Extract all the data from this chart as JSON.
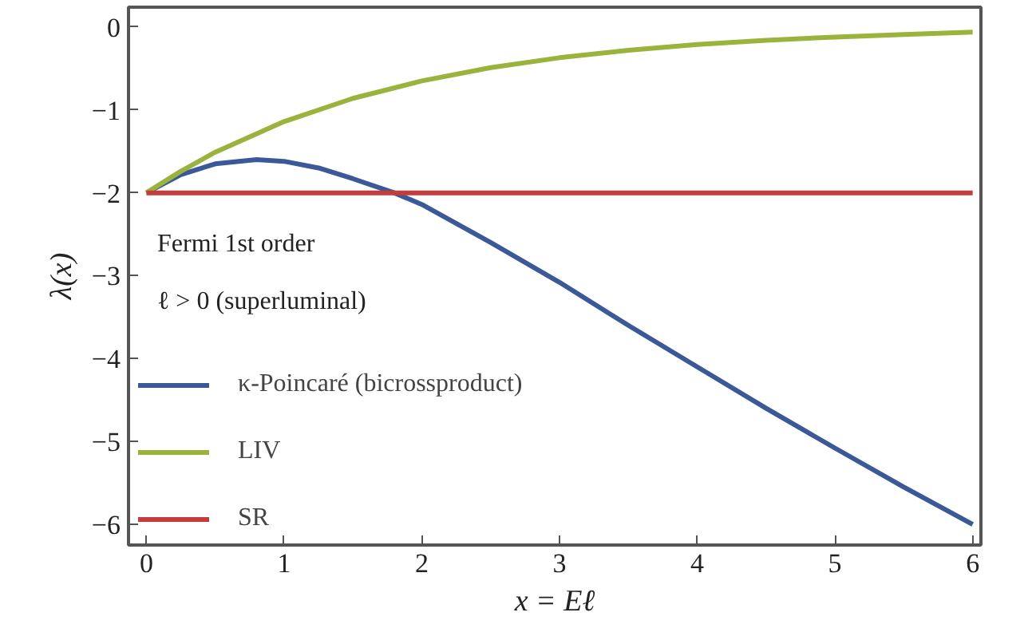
{
  "chart_data": {
    "type": "line",
    "xlabel": "x = Eℓ",
    "ylabel": "λ(x)",
    "annotations": [
      "Fermi 1st order",
      "ℓ > 0 (superluminal)"
    ],
    "x": [
      0,
      0.25,
      0.5,
      0.8,
      1.0,
      1.25,
      1.5,
      1.8,
      2.0,
      2.5,
      3,
      3.5,
      4,
      4.5,
      5,
      5.5,
      6
    ],
    "series": [
      {
        "name": "κ-Poincaré (bicrossproduct)",
        "color": "#3b5998",
        "values": [
          -2,
          -1.78,
          -1.65,
          -1.6,
          -1.62,
          -1.7,
          -1.83,
          -2.0,
          -2.14,
          -2.6,
          -3.08,
          -3.6,
          -4.1,
          -4.6,
          -5.08,
          -5.55,
          -6.0
        ]
      },
      {
        "name": "LIV",
        "color": "#9ab33c",
        "x": [
          0,
          0.25,
          0.5,
          1,
          1.5,
          2,
          2.5,
          3,
          3.5,
          4,
          4.5,
          5,
          5.5,
          6
        ],
        "values": [
          -2,
          -1.74,
          -1.51,
          -1.14,
          -0.86,
          -0.65,
          -0.49,
          -0.37,
          -0.28,
          -0.21,
          -0.16,
          -0.12,
          -0.09,
          -0.06
        ]
      },
      {
        "name": "SR",
        "color": "#c43c3c",
        "x": [
          0,
          6
        ],
        "values": [
          -2,
          -2
        ]
      }
    ],
    "xlim": [
      -0.13,
      6.06
    ],
    "ylim": [
      -6.25,
      0.24
    ],
    "xticks": [
      0,
      1,
      2,
      3,
      4,
      5,
      6
    ],
    "yticks": [
      -6,
      -5,
      -4,
      -3,
      -2,
      -1,
      0
    ],
    "grid": false,
    "legend": "bottom left",
    "line_style": "solid"
  }
}
